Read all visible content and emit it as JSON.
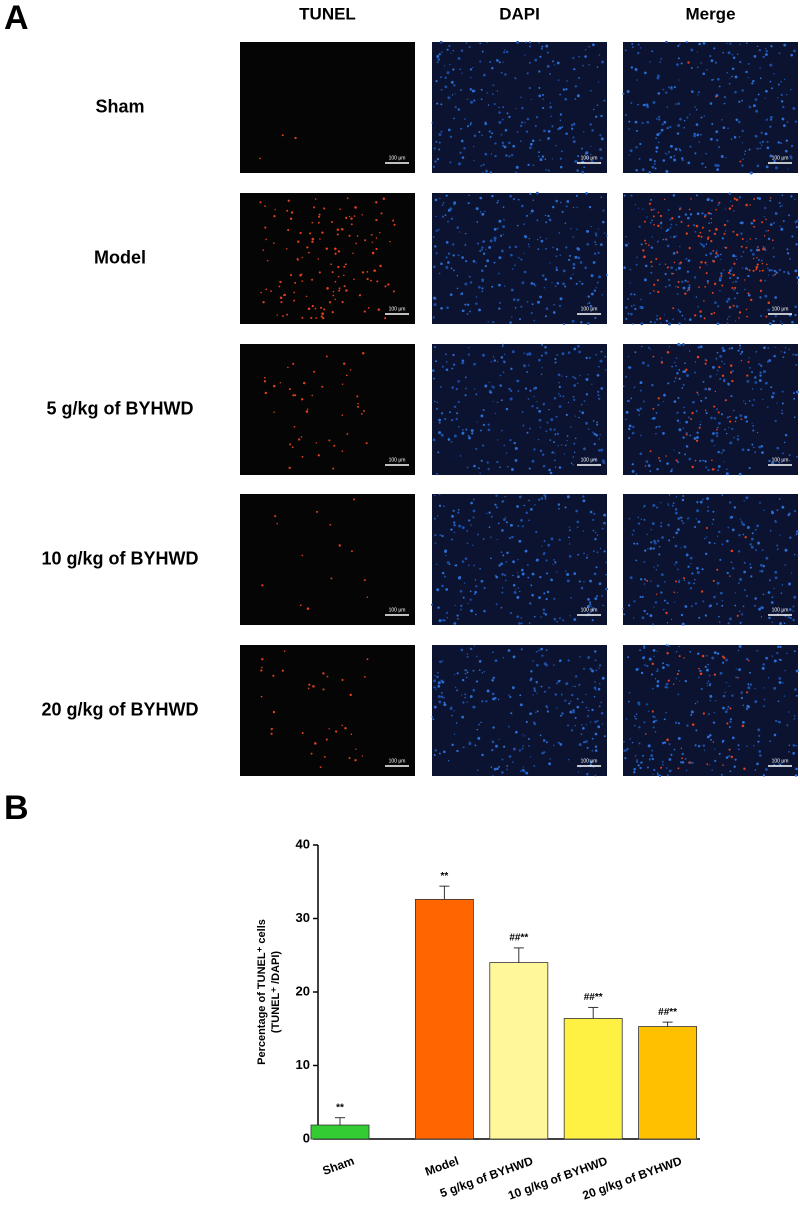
{
  "panel_a": {
    "label": "A",
    "columns": [
      "TUNEL",
      "DAPI",
      "Merge"
    ],
    "rows": [
      "Sham",
      "Model",
      "5 g/kg of BYHWD",
      "10 g/kg of BYHWD",
      "20 g/kg of BYHWD"
    ],
    "scale_bar": "100 μm"
  },
  "chart_data": {
    "type": "bar",
    "panel_label": "B",
    "categories": [
      "Sham",
      "Model",
      "5 g/kg of BYHWD",
      "10 g/kg of BYHWD",
      "20 g/kg of BYHWD"
    ],
    "values": [
      1.9,
      32.6,
      24.0,
      16.4,
      15.3
    ],
    "errors": [
      1.0,
      1.8,
      2.0,
      1.5,
      0.6
    ],
    "annotations": [
      "**",
      "**",
      "##**",
      "##**",
      "##**"
    ],
    "colors": [
      "#33cc33",
      "#ff6600",
      "#fff79a",
      "#fff144",
      "#ffc000"
    ],
    "ylabel": [
      "Percentage of TUNEL⁺ cells",
      "(TUNEL⁺ /DAPI)"
    ],
    "ylim": [
      0,
      40
    ],
    "yticks": [
      0,
      10,
      20,
      30,
      40
    ]
  }
}
